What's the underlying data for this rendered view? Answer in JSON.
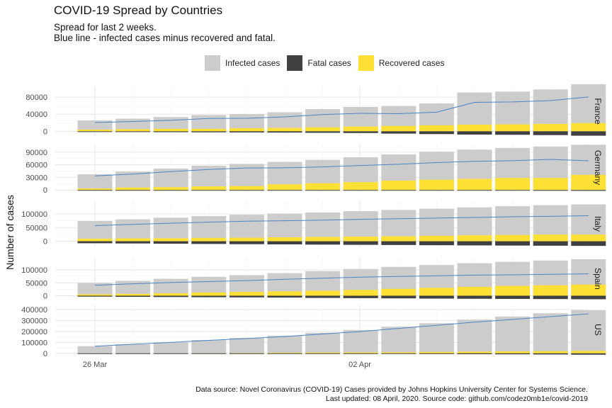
{
  "title": "COVID-19 Spread by Countries",
  "subtitle_line1": "Spread for last 2 weeks.",
  "subtitle_line2": "Blue line - infected cases minus recovered and fatal.",
  "legend": [
    {
      "label": "Infected cases",
      "color": "#cccccc"
    },
    {
      "label": "Fatal cases",
      "color": "#404040"
    },
    {
      "label": "Recovered cases",
      "color": "#ffe135"
    }
  ],
  "ylabel": "Number of cases",
  "caption_line1": "Data source: Novel Coronavirus (COVID-19) Cases provided by Johns Hopkins University Center for Systems Science.",
  "caption_line2": "Last updated: 08 April, 2020. Source code: github.com/codez0mb1e/covid-2019",
  "chart_data": {
    "type": "bar",
    "facets": "rows by country",
    "x_tick_labels": [
      "26 Mar",
      "02 Apr"
    ],
    "dates": [
      "2020-03-25",
      "2020-03-26",
      "2020-03-27",
      "2020-03-28",
      "2020-03-29",
      "2020-03-30",
      "2020-03-31",
      "2020-04-01",
      "2020-04-02",
      "2020-04-03",
      "2020-04-04",
      "2020-04-05",
      "2020-04-06",
      "2020-04-07"
    ],
    "colors": {
      "infected": "#cccccc",
      "fatal": "#404040",
      "recovered": "#ffe135",
      "active_line": "#4a86c8"
    },
    "countries": [
      {
        "name": "France",
        "y_ticks": [
          0,
          40000,
          80000
        ],
        "y_tick_labels": [
          "0",
          "40000",
          "80000"
        ],
        "ylim": [
          -11000,
          105000
        ],
        "infected": [
          25600,
          29600,
          33400,
          38100,
          40200,
          44600,
          52100,
          57000,
          59100,
          65200,
          90800,
          93000,
          98000,
          110000
        ],
        "recovered": [
          3900,
          4900,
          5700,
          5700,
          7200,
          7900,
          9400,
          11000,
          12400,
          14000,
          15500,
          16200,
          17300,
          19300
        ],
        "fatal": [
          1300,
          1700,
          2000,
          2300,
          2600,
          3000,
          3500,
          4000,
          5400,
          6500,
          7600,
          8100,
          8900,
          10300
        ],
        "active": [
          20400,
          23000,
          25700,
          30000,
          30400,
          33700,
          39200,
          42000,
          41300,
          44700,
          67700,
          68700,
          71800,
          80400
        ]
      },
      {
        "name": "Germany",
        "y_ticks": [
          0,
          30000,
          60000,
          90000
        ],
        "y_tick_labels": [
          "0",
          "30000",
          "60000",
          "90000"
        ],
        "ylim": [
          -3000,
          110000
        ],
        "infected": [
          37300,
          43900,
          50900,
          57700,
          62100,
          66900,
          71800,
          77900,
          84800,
          91200,
          96100,
          100100,
          103400,
          107700
        ],
        "recovered": [
          3500,
          5700,
          6700,
          8500,
          9200,
          13500,
          16100,
          18700,
          22400,
          24600,
          26400,
          28700,
          28700,
          36100
        ],
        "fatal": [
          200,
          270,
          350,
          430,
          540,
          650,
          780,
          930,
          1100,
          1280,
          1440,
          1580,
          1810,
          2020
        ],
        "active": [
          33600,
          37900,
          43900,
          48800,
          52400,
          52800,
          54900,
          58300,
          61200,
          65300,
          68200,
          69800,
          72900,
          69600
        ]
      },
      {
        "name": "Italy",
        "y_ticks": [
          0,
          50000,
          100000
        ],
        "y_tick_labels": [
          "0",
          "50000",
          "100000"
        ],
        "ylim": [
          -22000,
          150000
        ],
        "infected": [
          74400,
          80600,
          86500,
          92500,
          97700,
          101700,
          105800,
          110600,
          115200,
          119800,
          124600,
          128900,
          132500,
          135600
        ],
        "recovered": [
          9400,
          10400,
          10900,
          12400,
          13000,
          14600,
          15700,
          16800,
          18300,
          19800,
          21800,
          22800,
          24400,
          24400
        ],
        "fatal": [
          7500,
          8200,
          9100,
          10000,
          10800,
          11600,
          12400,
          13200,
          13900,
          14700,
          15400,
          15900,
          16500,
          17100
        ],
        "active": [
          57500,
          62000,
          66400,
          70100,
          73900,
          75500,
          77600,
          80600,
          83000,
          85300,
          87400,
          90200,
          91600,
          94100
        ]
      },
      {
        "name": "Spain",
        "y_ticks": [
          0,
          50000,
          100000
        ],
        "y_tick_labels": [
          "0",
          "50000",
          "100000"
        ],
        "ylim": [
          -18000,
          150000
        ],
        "infected": [
          49500,
          57800,
          65700,
          73200,
          80100,
          87900,
          95900,
          104100,
          112100,
          119200,
          126200,
          131600,
          136700,
          141900
        ],
        "recovered": [
          5400,
          7000,
          9400,
          12300,
          14700,
          16800,
          19300,
          22600,
          26700,
          30500,
          34200,
          38100,
          40400,
          43200
        ],
        "fatal": [
          3600,
          4400,
          5100,
          5900,
          6500,
          7300,
          8500,
          9400,
          10300,
          11200,
          11900,
          12400,
          13000,
          13800
        ],
        "active": [
          40500,
          46400,
          51200,
          55000,
          58900,
          63800,
          68100,
          72100,
          75100,
          77500,
          80100,
          81100,
          83300,
          84900
        ]
      },
      {
        "name": "US",
        "y_ticks": [
          0,
          100000,
          200000,
          300000,
          400000
        ],
        "y_tick_labels": [
          "0",
          "100000",
          "200000",
          "300000",
          "400000"
        ],
        "ylim": [
          -8000,
          440000
        ],
        "infected": [
          65800,
          83800,
          101700,
          121500,
          140900,
          161800,
          188200,
          213400,
          243500,
          275600,
          308900,
          337100,
          366700,
          396200
        ],
        "recovered": [
          0,
          0,
          0,
          1000,
          2700,
          5600,
          7000,
          8500,
          9700,
          12300,
          14700,
          17400,
          19600,
          21800
        ],
        "fatal": [
          900,
          1200,
          1600,
          2000,
          2500,
          2900,
          3900,
          4800,
          5900,
          7100,
          8400,
          9600,
          10800,
          12800
        ],
        "active": [
          64900,
          82600,
          100100,
          118500,
          135700,
          153300,
          177300,
          200100,
          227900,
          256200,
          285800,
          310100,
          336300,
          361600
        ]
      }
    ]
  }
}
